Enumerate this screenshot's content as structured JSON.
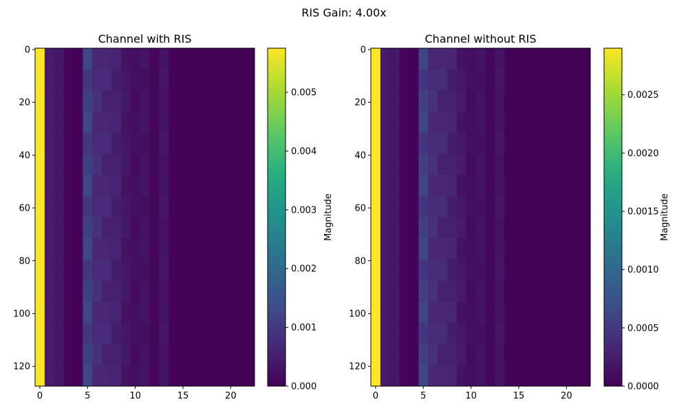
{
  "suptitle": "RIS Gain: 4.00x",
  "chart_data": [
    {
      "type": "heatmap",
      "title": "Channel with RIS",
      "xlabel": "",
      "ylabel": "",
      "rows": 128,
      "cols": 23,
      "x_ticks": [
        0,
        5,
        10,
        15,
        20
      ],
      "y_ticks": [
        0,
        20,
        40,
        60,
        80,
        100,
        120
      ],
      "colormap": "viridis",
      "colorbar": {
        "label": "Magnitude",
        "vmin": 0,
        "vmax": 0.00575,
        "ticks": [
          "0.000",
          "0.001",
          "0.002",
          "0.003",
          "0.004",
          "0.005"
        ],
        "tick_values": [
          0,
          0.001,
          0.002,
          0.003,
          0.004,
          0.005
        ]
      },
      "column_profile": [
        0.00575,
        0.00045,
        0.00038,
        5e-05,
        4e-05,
        0.0011,
        0.00075,
        0.00065,
        0.00055,
        0.00035,
        0.00022,
        0.00028,
        0.00012,
        0.00032,
        3e-05,
        2e-05,
        2e-05,
        2e-05,
        2e-05,
        2e-05,
        2e-05,
        2e-05,
        2e-05
      ]
    },
    {
      "type": "heatmap",
      "title": "Channel without RIS",
      "xlabel": "",
      "ylabel": "",
      "rows": 128,
      "cols": 23,
      "x_ticks": [
        0,
        5,
        10,
        15,
        20
      ],
      "y_ticks": [
        0,
        20,
        40,
        60,
        80,
        100,
        120
      ],
      "colormap": "viridis",
      "colorbar": {
        "label": "Magnitude",
        "vmin": 0,
        "vmax": 0.0029,
        "ticks": [
          "0.0000",
          "0.0005",
          "0.0010",
          "0.0015",
          "0.0020",
          "0.0025"
        ],
        "tick_values": [
          0,
          0.0005,
          0.001,
          0.0015,
          0.002,
          0.0025
        ]
      },
      "column_profile": [
        0.0029,
        0.00022,
        0.00019,
        2.5e-05,
        2e-05,
        0.00055,
        0.00038,
        0.00033,
        0.00028,
        0.00018,
        0.00011,
        0.00014,
        6e-05,
        0.00016,
        1.5e-05,
        1e-05,
        1e-05,
        1e-05,
        1e-05,
        1e-05,
        1e-05,
        1e-05,
        1e-05
      ]
    }
  ]
}
